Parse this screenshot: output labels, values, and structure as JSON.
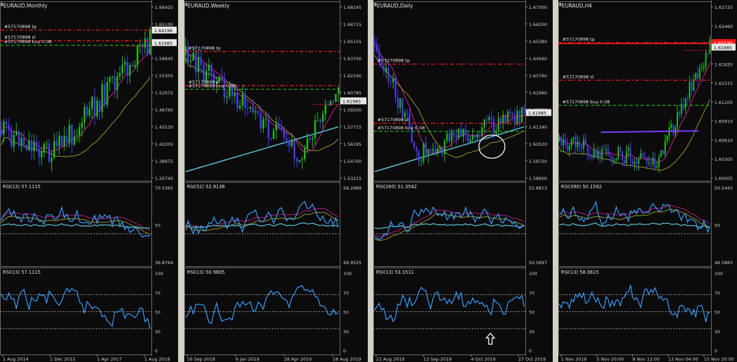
{
  "charts": [
    {
      "title": "EURAUD,Monthly",
      "price_ticks": [
        "1.68425",
        "1.65100",
        "1.61985",
        "1.58845",
        "1.55305",
        "1.52075",
        "1.48760",
        "1.45530",
        "1.42205",
        "1.38975",
        "1.35745"
      ],
      "price_tags": [
        "1.64196",
        "1.61985"
      ],
      "order_labels": [
        "#57170898 tp",
        "#57170898 sl",
        "#57170898 buy 0.08"
      ],
      "rsi1_label": "RSI(13) 57.1115",
      "rsi1_ticks": [
        "70.5362",
        "50",
        "36.8764"
      ],
      "rsi2_label": "RSI(13) 57.1115",
      "rsi2_ticks": [
        "100",
        "70",
        "50",
        "30",
        "0"
      ],
      "time_ticks": [
        "1 Aug 2014",
        "1 Dec 2015",
        "1 Apr 2017",
        "1 Aug 2018"
      ]
    },
    {
      "title": "EURAUD,Weekly",
      "price_ticks": [
        "1.68245",
        "1.66715",
        "1.65155",
        "1.63700",
        "1.62240",
        "1.60785",
        "1.59200",
        "1.57715",
        "1.56185",
        "1.54700",
        "1.53215"
      ],
      "price_tags": [
        "1.61985"
      ],
      "order_labels": [
        "#57170898 tp",
        "#57170898 sl",
        "#57170898 buy 0.08"
      ],
      "rsi1_label": "RSI(52) 52.9136",
      "rsi1_ticks": [
        "58.2989",
        "49.9525"
      ],
      "rsi2_label": "RSI(13) 50.9805",
      "rsi2_ticks": [
        "100",
        "70",
        "50",
        "30",
        "0"
      ],
      "time_ticks": [
        "16 Sep 2018",
        "6 Jan 2019",
        "28 Apr 2019",
        "18 Aug 2019"
      ]
    },
    {
      "title": "EURAUD,Daily",
      "price_ticks": [
        "1.67000",
        "1.66200",
        "1.65380",
        "1.64560",
        "1.63760",
        "1.62960",
        "1.62150",
        "1.61340",
        "1.60520",
        "1.59720",
        "1.58900"
      ],
      "price_tags": [
        "1.61985"
      ],
      "order_labels": [
        "#57170898 tp",
        "#57170898 sl",
        "#57170898 buy 0.08"
      ],
      "rsi1_label": "RSI(260) 51.3542",
      "rsi1_ticks": [
        "52.8812",
        "50.5697"
      ],
      "rsi2_label": "RSI(13) 53.1511",
      "rsi2_ticks": [
        "100",
        "70",
        "50",
        "30",
        "0"
      ],
      "time_ticks": [
        "21 Aug 2019",
        "12 Sep 2019",
        "4 Oct 2019",
        "27 Oct 2019"
      ]
    },
    {
      "title": "EURAUD,H4",
      "price_ticks": [
        "1.62725",
        "1.62460",
        "1.62130",
        "1.61820",
        "1.61515",
        "1.61205",
        "1.60910",
        "1.60610",
        "1.60305",
        "1.60005"
      ],
      "price_tags": [
        "1.62130",
        "1.61985"
      ],
      "order_labels": [
        "#57170898 tp",
        "#57170898 sl",
        "#57170898 buy 0.08"
      ],
      "rsi1_label": "RSI(390) 50.1592",
      "rsi1_ticks": [
        "50.5442",
        "50",
        "48.5883"
      ],
      "rsi2_label": "RSI(13) 58.0615",
      "rsi2_ticks": [
        "100",
        "70",
        "50",
        "30",
        "0"
      ],
      "time_ticks": [
        "1 Nov 2019",
        "5 Nov 20:00",
        "8 Nov 12:00",
        "13 Nov 04:00",
        "15 Nov 20:00"
      ]
    }
  ],
  "colors": {
    "bg": "#0b0b0b",
    "bull": "#22c01e",
    "bear": "#4a3bff",
    "ma_fast": "#c21e8c",
    "ma_mid": "#8c8a28",
    "ma_slow": "#5ab8c8",
    "rsi_line": "#3aa0ff",
    "tp_line": "#ff2020",
    "sl_line": "#ff2020",
    "buy_line": "#22c01e",
    "text": "#e6e6e6",
    "axis_text": "#cfcfcf",
    "grid": "#9a9a9a",
    "tag_bg": "#e8e8e8",
    "tag_red": "#ff1a1a",
    "separator": "#d4d0c8"
  }
}
